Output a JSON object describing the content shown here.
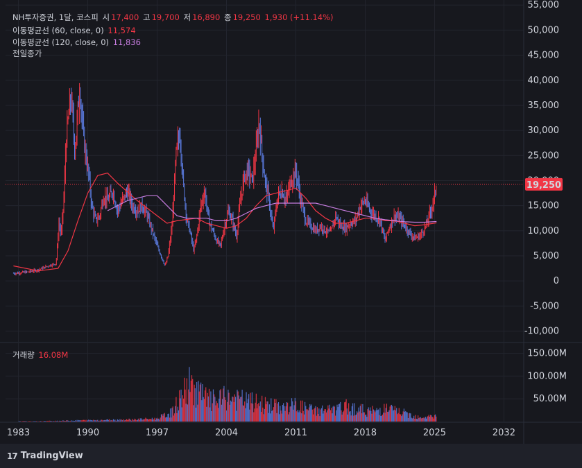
{
  "header": {
    "symbol": "NH투자증권, 1달, 코스피",
    "open_label": "시",
    "open": "17,400",
    "high_label": "고",
    "high": "19,700",
    "low_label": "저",
    "low": "16,890",
    "close_label": "종",
    "close": "19,250",
    "change": "1,930 (+11.14%)"
  },
  "indicators": {
    "ma60_label": "이동평균선 (60, close, 0)",
    "ma60_value": "11,574",
    "ma120_label": "이동평균선 (120, close, 0)",
    "ma120_value": "11,836",
    "prev_close_label": "전일종가"
  },
  "volume_legend": {
    "label": "거래량",
    "value": "16.08M"
  },
  "price_tag": "19,250",
  "brand": "TradingView",
  "colors": {
    "up": "#f23645",
    "down": "#5b7be0",
    "ma60": "#f23645",
    "ma120": "#c77de0",
    "background": "#17181e",
    "grid": "#23252e"
  },
  "chart_data": {
    "type": "line",
    "title": "NH투자증권, 1달, 코스피",
    "x_ticks": [
      "1983",
      "1990",
      "1997",
      "2004",
      "2011",
      "2018",
      "2025",
      "2032"
    ],
    "y_ticks": [
      "55,000",
      "50,000",
      "45,000",
      "40,000",
      "35,000",
      "30,000",
      "25,000",
      "20,000",
      "15,000",
      "10,000",
      "5,000",
      "0",
      "-5,000",
      "-10,000"
    ],
    "ylim": [
      -12000,
      56000
    ],
    "volume_ticks": [
      "150.00M",
      "100.00M",
      "50.00M"
    ],
    "volume_ylim": [
      0,
      160
    ],
    "last_close": 19250,
    "series": [
      {
        "name": "종가",
        "x": [
          1982.5,
          1983,
          1984,
          1985,
          1986,
          1986.8,
          1987.1,
          1987.3,
          1987.6,
          1987.8,
          1988.3,
          1988.7,
          1989.2,
          1989.5,
          1989.8,
          1990.1,
          1990.4,
          1990.8,
          1991.2,
          1991.6,
          1992.0,
          1992.5,
          1993.0,
          1993.5,
          1994.0,
          1994.5,
          1995.0,
          1995.5,
          1996.0,
          1996.5,
          1997.0,
          1997.4,
          1997.8,
          1998.1,
          1998.5,
          1998.9,
          1999.3,
          1999.6,
          2000.0,
          2000.3,
          2000.7,
          2001.0,
          2001.4,
          2001.8,
          2002.2,
          2002.6,
          2003.0,
          2003.4,
          2003.8,
          2004.2,
          2004.6,
          2005.0,
          2005.4,
          2005.8,
          2006.2,
          2006.6,
          2007.0,
          2007.3,
          2007.6,
          2007.9,
          2008.3,
          2008.7,
          2008.9,
          2009.2,
          2009.6,
          2010.0,
          2010.5,
          2011.0,
          2011.5,
          2012.0,
          2012.5,
          2013.0,
          2013.5,
          2014.0,
          2014.5,
          2015.0,
          2015.5,
          2016.0,
          2016.5,
          2017.0,
          2017.5,
          2018.0,
          2018.5,
          2019.0,
          2019.5,
          2020.0,
          2020.3,
          2020.7,
          2021.0,
          2021.5,
          2022.0,
          2022.5,
          2023.0,
          2023.5,
          2024.0,
          2024.3,
          2024.6,
          2024.9,
          2025.2
        ],
        "values": [
          1500,
          1600,
          1800,
          2200,
          3000,
          3500,
          12000,
          9000,
          17000,
          28000,
          37000,
          26000,
          39000,
          30000,
          25000,
          21000,
          15000,
          12000,
          13000,
          17000,
          16000,
          18000,
          14000,
          16000,
          18000,
          15000,
          14000,
          15000,
          13000,
          10000,
          7000,
          5000,
          3000,
          5000,
          11000,
          25000,
          30000,
          20000,
          12000,
          10000,
          6000,
          9000,
          15000,
          18000,
          12000,
          10000,
          8000,
          7000,
          11000,
          14000,
          12000,
          9000,
          16000,
          21000,
          22000,
          20000,
          26000,
          32000,
          25000,
          20000,
          16000,
          10000,
          13000,
          17000,
          18000,
          16000,
          20000,
          22000,
          16000,
          12000,
          11000,
          10000,
          11000,
          10000,
          9500,
          13000,
          11000,
          10500,
          11500,
          12000,
          15000,
          16000,
          14000,
          13000,
          12000,
          8000,
          10000,
          12000,
          13000,
          12500,
          11000,
          9500,
          8500,
          9000,
          10500,
          12000,
          14000,
          16000,
          19250
        ]
      },
      {
        "name": "이동평균선 (60, close, 0)",
        "x": [
          1982.5,
          1985,
          1987,
          1988,
          1989,
          1990,
          1991,
          1992,
          1993,
          1995,
          1997,
          1998,
          1999,
          2001,
          2002,
          2003,
          2004,
          2005,
          2006,
          2007,
          2008,
          2009,
          2010,
          2011,
          2012,
          2013,
          2014,
          2015,
          2016,
          2017,
          2018,
          2019,
          2020,
          2021,
          2022,
          2023,
          2024,
          2025.2
        ],
        "values": [
          3000,
          2000,
          2500,
          6000,
          12000,
          17500,
          21000,
          21500,
          19500,
          16000,
          13000,
          11500,
          12000,
          12500,
          11500,
          11000,
          10500,
          11000,
          12500,
          15000,
          17000,
          17500,
          18000,
          18500,
          16500,
          14000,
          12500,
          11500,
          11500,
          12000,
          12500,
          12500,
          12000,
          12000,
          11500,
          11000,
          11200,
          11574
        ]
      },
      {
        "name": "이동평균선 (120, close, 0)",
        "x": [
          1992,
          1993,
          1994,
          1995,
          1996,
          1997,
          1998,
          1999,
          2000,
          2001,
          2002,
          2003,
          2004,
          2005,
          2006,
          2007,
          2008,
          2009,
          2010,
          2011,
          2012,
          2013,
          2014,
          2015,
          2016,
          2017,
          2018,
          2019,
          2020,
          2021,
          2022,
          2023,
          2024,
          2025.2
        ],
        "values": [
          14000,
          15000,
          16000,
          16500,
          17000,
          17000,
          15000,
          13000,
          12500,
          12500,
          12500,
          12000,
          12000,
          12500,
          13500,
          14500,
          15000,
          15500,
          15500,
          15500,
          15500,
          15500,
          15000,
          14500,
          14000,
          13500,
          13000,
          12500,
          12200,
          12000,
          11800,
          11700,
          11700,
          11836
        ]
      }
    ],
    "volume": {
      "name": "거래량",
      "x": [
        1983,
        1985,
        1987,
        1989,
        1991,
        1993,
        1995,
        1997,
        1998.5,
        1999.5,
        2000.3,
        2001,
        2002,
        2003,
        2004,
        2005,
        2006,
        2007,
        2008,
        2009,
        2010,
        2011,
        2012,
        2013,
        2014,
        2015,
        2016,
        2017,
        2018,
        2019,
        2020,
        2021,
        2022,
        2023,
        2024,
        2025.2
      ],
      "values": [
        1,
        1,
        2,
        3,
        4,
        5,
        6,
        8,
        25,
        70,
        100,
        85,
        60,
        55,
        65,
        60,
        55,
        50,
        45,
        40,
        38,
        45,
        35,
        30,
        32,
        30,
        40,
        35,
        30,
        28,
        35,
        30,
        22,
        15,
        12,
        16
      ]
    }
  }
}
